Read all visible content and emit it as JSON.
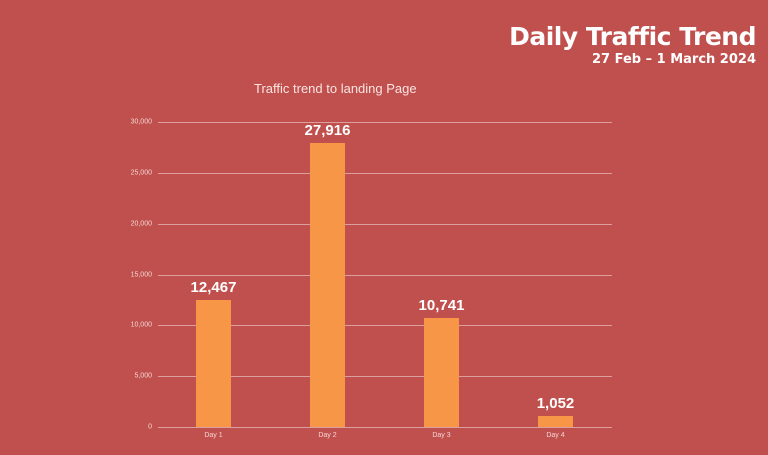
{
  "header": {
    "title": "Daily Traffic Trend",
    "subtitle": "27 Feb – 1 March 2024"
  },
  "chart": {
    "title": "Traffic trend to landing Page",
    "y_ticks": [
      "0",
      "5,000",
      "10,000",
      "15,000",
      "20,000",
      "25,000",
      "30,000"
    ],
    "x_ticks": [
      "Day 1",
      "Day 2",
      "Day 3",
      "Day 4"
    ],
    "bar_labels": [
      "12,467",
      "27,916",
      "10,741",
      "1,052"
    ]
  },
  "colors": {
    "background": "#C0504D",
    "bar": "#F79646",
    "text": "#FFFFFF"
  },
  "chart_data": {
    "type": "bar",
    "title": "Traffic trend to landing Page",
    "categories": [
      "Day 1",
      "Day 2",
      "Day 3",
      "Day 4"
    ],
    "values": [
      12467,
      27916,
      10741,
      1052
    ],
    "xlabel": "",
    "ylabel": "",
    "ylim": [
      0,
      30000
    ],
    "yticks": [
      0,
      5000,
      10000,
      15000,
      20000,
      25000,
      30000
    ],
    "grid": true,
    "legend": null,
    "data_labels": true
  }
}
